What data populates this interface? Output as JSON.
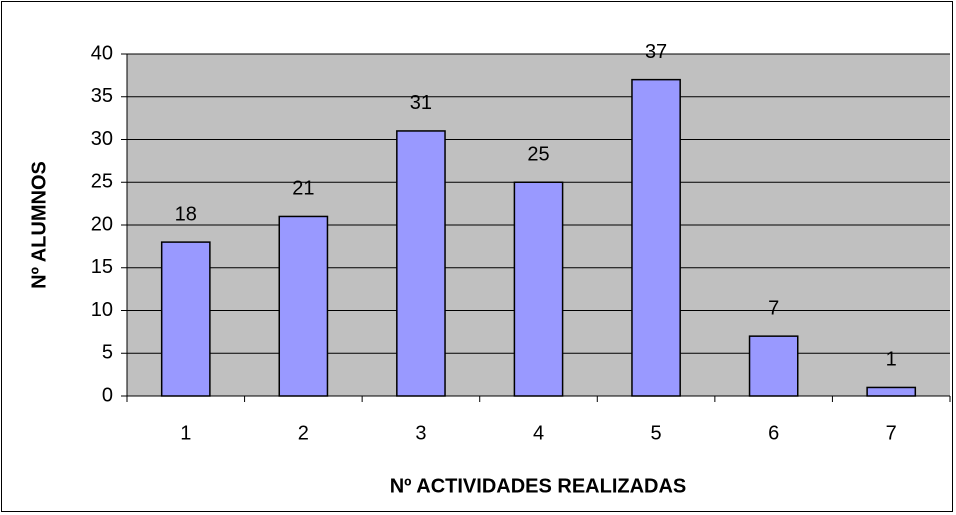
{
  "chart_data": {
    "type": "bar",
    "xlabel": "Nº ACTIVIDADES REALIZADAS",
    "ylabel": "Nº ALUMNOS",
    "categories": [
      "1",
      "2",
      "3",
      "4",
      "5",
      "6",
      "7"
    ],
    "values": [
      18,
      21,
      31,
      25,
      37,
      7,
      1
    ],
    "color": "#9999ff",
    "ylim": [
      0,
      40
    ],
    "yticks": [
      0,
      5,
      10,
      15,
      20,
      25,
      30,
      35,
      40
    ],
    "grid": true
  }
}
